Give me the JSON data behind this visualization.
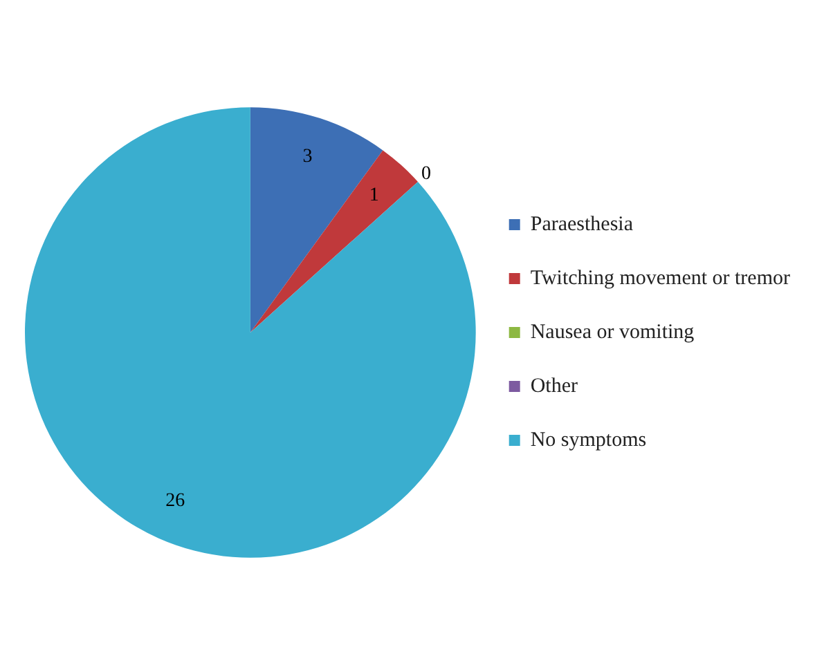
{
  "chart_data": {
    "type": "pie",
    "categories": [
      "Paraesthesia",
      "Twitching movement or tremor",
      "Nausea or vomiting",
      "Other",
      "No symptoms"
    ],
    "values": [
      3,
      1,
      0,
      0,
      26
    ],
    "colors": [
      "#3d6fb5",
      "#c0393b",
      "#8db842",
      "#7d5aa0",
      "#3aaecf"
    ],
    "value_labels": [
      "3",
      "1",
      "0",
      null,
      "26"
    ],
    "legend": "right"
  }
}
